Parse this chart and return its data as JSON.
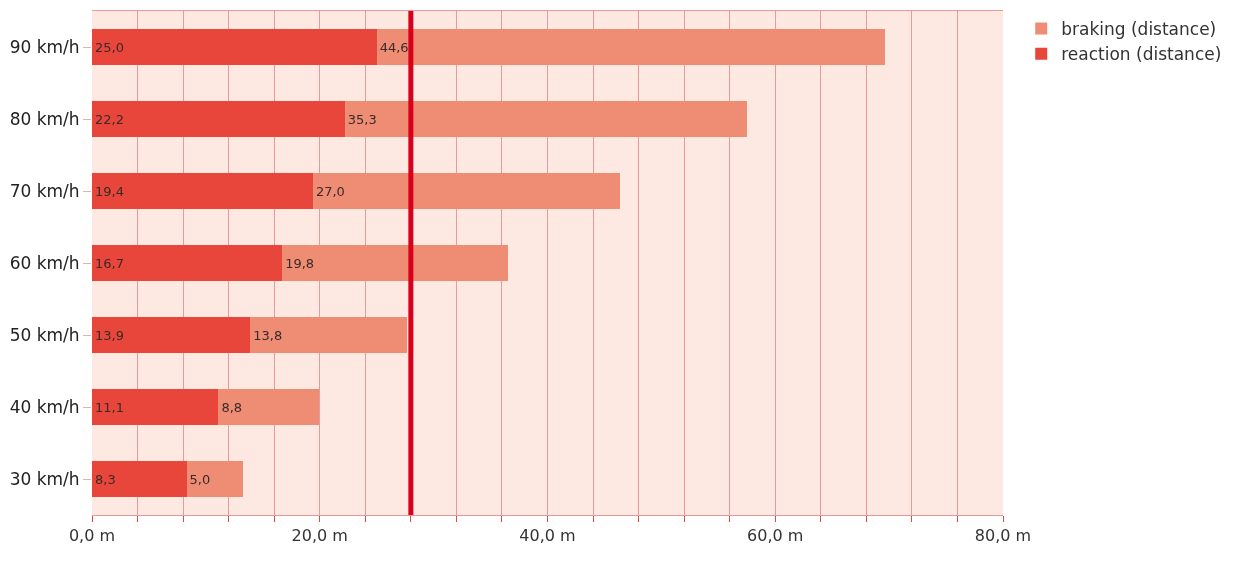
{
  "chart_data": {
    "type": "bar",
    "orientation": "horizontal",
    "stacked": true,
    "categories": [
      "90 km/h",
      "80 km/h",
      "70 km/h",
      "60 km/h",
      "50 km/h",
      "40 km/h",
      "30 km/h"
    ],
    "series": [
      {
        "name": "reaction (distance)",
        "color": "#e8463a",
        "values": [
          25.0,
          22.2,
          19.4,
          16.7,
          13.9,
          11.1,
          8.3
        ],
        "value_labels": [
          "25,0",
          "22,2",
          "19,4",
          "16,7",
          "13,9",
          "11,1",
          "8,3"
        ]
      },
      {
        "name": "braking (distance)",
        "color": "#ef8c74",
        "values": [
          44.6,
          35.3,
          27.0,
          19.8,
          13.8,
          8.8,
          5.0
        ],
        "value_labels": [
          "44,6",
          "35,3",
          "27,0",
          "19,8",
          "13,8",
          "8,8",
          "5,0"
        ]
      }
    ],
    "xlim": [
      0,
      80
    ],
    "xticks": [
      {
        "value": 0,
        "label": "0,0 m"
      },
      {
        "value": 4,
        "label": null
      },
      {
        "value": 8,
        "label": null
      },
      {
        "value": 12,
        "label": null
      },
      {
        "value": 16,
        "label": null
      },
      {
        "value": 20,
        "label": "20,0 m"
      },
      {
        "value": 24,
        "label": null
      },
      {
        "value": 28,
        "label": null
      },
      {
        "value": 32,
        "label": null
      },
      {
        "value": 36,
        "label": null
      },
      {
        "value": 40,
        "label": "40,0 m"
      },
      {
        "value": 44,
        "label": null
      },
      {
        "value": 48,
        "label": null
      },
      {
        "value": 52,
        "label": null
      },
      {
        "value": 56,
        "label": null
      },
      {
        "value": 60,
        "label": "60,0 m"
      },
      {
        "value": 64,
        "label": null
      },
      {
        "value": 68,
        "label": null
      },
      {
        "value": 72,
        "label": null
      },
      {
        "value": 76,
        "label": null
      },
      {
        "value": 80,
        "label": "80,0 m"
      }
    ],
    "ref_lines": [
      {
        "axis": "x",
        "value": 28,
        "color": "#d9001b"
      }
    ],
    "grid": "x",
    "legend": "top right"
  }
}
